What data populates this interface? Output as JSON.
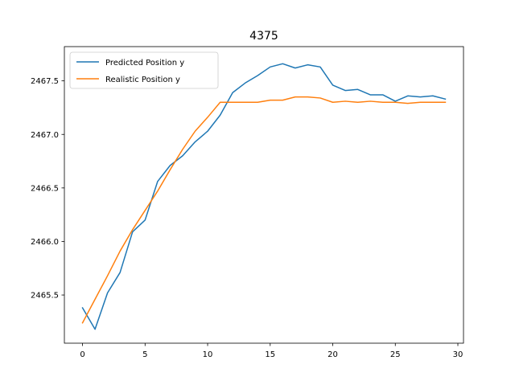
{
  "chart_data": {
    "type": "line",
    "title": "4375",
    "xlabel": "",
    "ylabel": "",
    "xlim": [
      -1.45,
      30.45
    ],
    "ylim": [
      2465.05,
      2467.82
    ],
    "xticks": [
      0,
      5,
      10,
      15,
      20,
      25,
      30
    ],
    "yticks": [
      2465.5,
      2466.0,
      2466.5,
      2467.0,
      2467.5
    ],
    "ytick_labels": [
      "2465.5",
      "2466.0",
      "2466.5",
      "2467.0",
      "2467.5"
    ],
    "grid": false,
    "legend_position": "upper-left",
    "x": [
      0,
      1,
      2,
      3,
      4,
      5,
      6,
      7,
      8,
      9,
      10,
      11,
      12,
      13,
      14,
      15,
      16,
      17,
      18,
      19,
      20,
      21,
      22,
      23,
      24,
      25,
      26,
      27,
      28,
      29
    ],
    "series": [
      {
        "name": "Predicted Position y",
        "color": "#1f77b4",
        "values": [
          2465.38,
          2465.18,
          2465.52,
          2465.71,
          2466.09,
          2466.2,
          2466.56,
          2466.71,
          2466.8,
          2466.93,
          2467.03,
          2467.18,
          2467.39,
          2467.48,
          2467.55,
          2467.63,
          2467.66,
          2467.62,
          2467.65,
          2467.63,
          2467.46,
          2467.41,
          2467.42,
          2467.37,
          2467.37,
          2467.31,
          2467.36,
          2467.35,
          2467.36,
          2467.33
        ]
      },
      {
        "name": "Realistic Position y",
        "color": "#ff7f0e",
        "values": [
          2465.24,
          2465.46,
          2465.68,
          2465.91,
          2466.11,
          2466.29,
          2466.47,
          2466.67,
          2466.86,
          2467.03,
          2467.16,
          2467.3,
          2467.3,
          2467.3,
          2467.3,
          2467.32,
          2467.32,
          2467.35,
          2467.35,
          2467.34,
          2467.3,
          2467.31,
          2467.3,
          2467.31,
          2467.3,
          2467.3,
          2467.29,
          2467.3,
          2467.3,
          2467.3
        ]
      }
    ]
  }
}
